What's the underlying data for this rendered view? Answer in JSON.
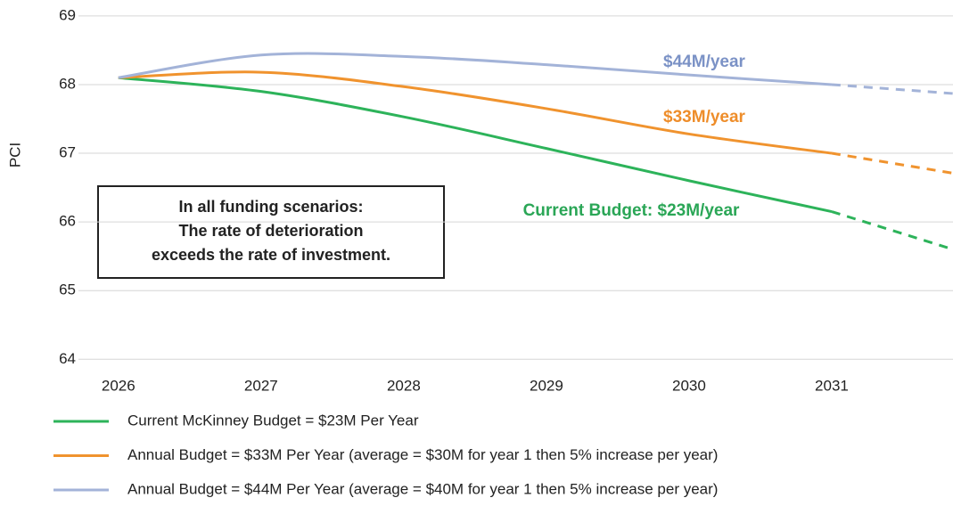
{
  "chart_data": {
    "type": "line",
    "y_label": "PCI",
    "x": [
      2026,
      2027,
      2028,
      2029,
      2030,
      2031,
      2031.85
    ],
    "xticks": [
      2026,
      2027,
      2028,
      2029,
      2030,
      2031
    ],
    "xlim": [
      2025.72,
      2031.85
    ],
    "ylim": [
      63.9,
      69.05
    ],
    "yticks": [
      64,
      65,
      66,
      67,
      68,
      69
    ],
    "grid": true,
    "projected_from": 2031,
    "series": [
      {
        "name": "Current McKinney Budget = $23M Per Year",
        "color": "#2db35a",
        "values": [
          68.1,
          67.9,
          67.53,
          67.07,
          66.6,
          66.15,
          65.6
        ]
      },
      {
        "name": "Annual Budget = $33M Per Year (average = $30M for year 1 then 5% increase per year)",
        "color": "#f0932e",
        "values": [
          68.1,
          68.18,
          67.97,
          67.65,
          67.28,
          67.0,
          66.71
        ]
      },
      {
        "name": "Annual Budget = $44M Per Year (average = $40M for year 1 then 5% increase per year)",
        "color": "#a3b3d8",
        "values": [
          68.1,
          68.43,
          68.41,
          68.29,
          68.14,
          68.0,
          67.87
        ]
      }
    ],
    "annotations": [
      {
        "text": "$44M/year",
        "color": "#7b92c6"
      },
      {
        "text": "$33M/year",
        "color": "#ee8d2a"
      },
      {
        "text": "Current Budget: $23M/year",
        "color": "#2aa656"
      }
    ],
    "note": [
      "In all funding scenarios:",
      "The rate of deterioration",
      "exceeds the rate of investment."
    ]
  }
}
